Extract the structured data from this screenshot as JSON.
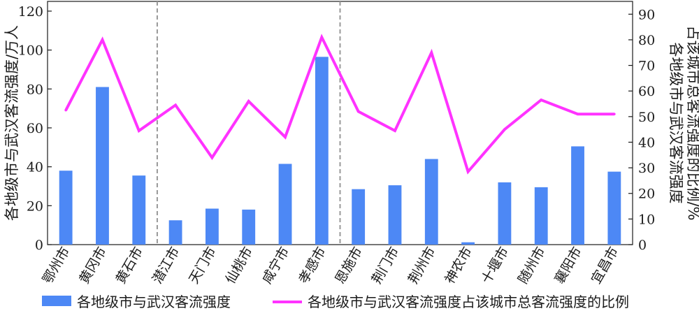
{
  "chart_data": {
    "type": "bar",
    "categories": [
      "鄂州市",
      "黄冈市",
      "黄石市",
      "潜江市",
      "天门市",
      "仙桃市",
      "咸宁市",
      "孝感市",
      "恩施市",
      "荆门市",
      "荆州市",
      "神农市",
      "十堰市",
      "随州市",
      "襄阳市",
      "宜昌市"
    ],
    "series": [
      {
        "name": "各地级市与武汉客流强度",
        "type": "bar",
        "axis": "left",
        "color": "#4d88f5",
        "values": [
          38,
          81,
          35.5,
          12.5,
          18.5,
          18,
          41.5,
          96.5,
          28.5,
          30.5,
          44,
          1.2,
          32,
          29.5,
          50.5,
          37.5
        ]
      },
      {
        "name": "各地级市与武汉客流强度占该城市总客流强度的比例",
        "type": "line",
        "axis": "right",
        "color": "#ff33ff",
        "values": [
          52.5,
          80,
          44.5,
          54.5,
          34,
          56,
          42,
          81,
          52,
          44.5,
          75,
          28.5,
          45,
          56.5,
          51,
          51
        ]
      }
    ],
    "ylabel": "各地级市与武汉客流强度/万人",
    "ylabel_right": "各地级市与武汉客流强度占该城市总客流强度的比例/%",
    "ylim": [
      0,
      125
    ],
    "ylim_right": [
      0,
      95
    ],
    "yticks": [
      0,
      20,
      40,
      60,
      80,
      100,
      120
    ],
    "yticks_right": [
      0,
      10,
      20,
      30,
      40,
      50,
      60,
      70,
      80,
      90
    ],
    "separators_after_index": [
      2,
      7
    ],
    "separator_color": "#999999",
    "legend_position": "bottom"
  }
}
